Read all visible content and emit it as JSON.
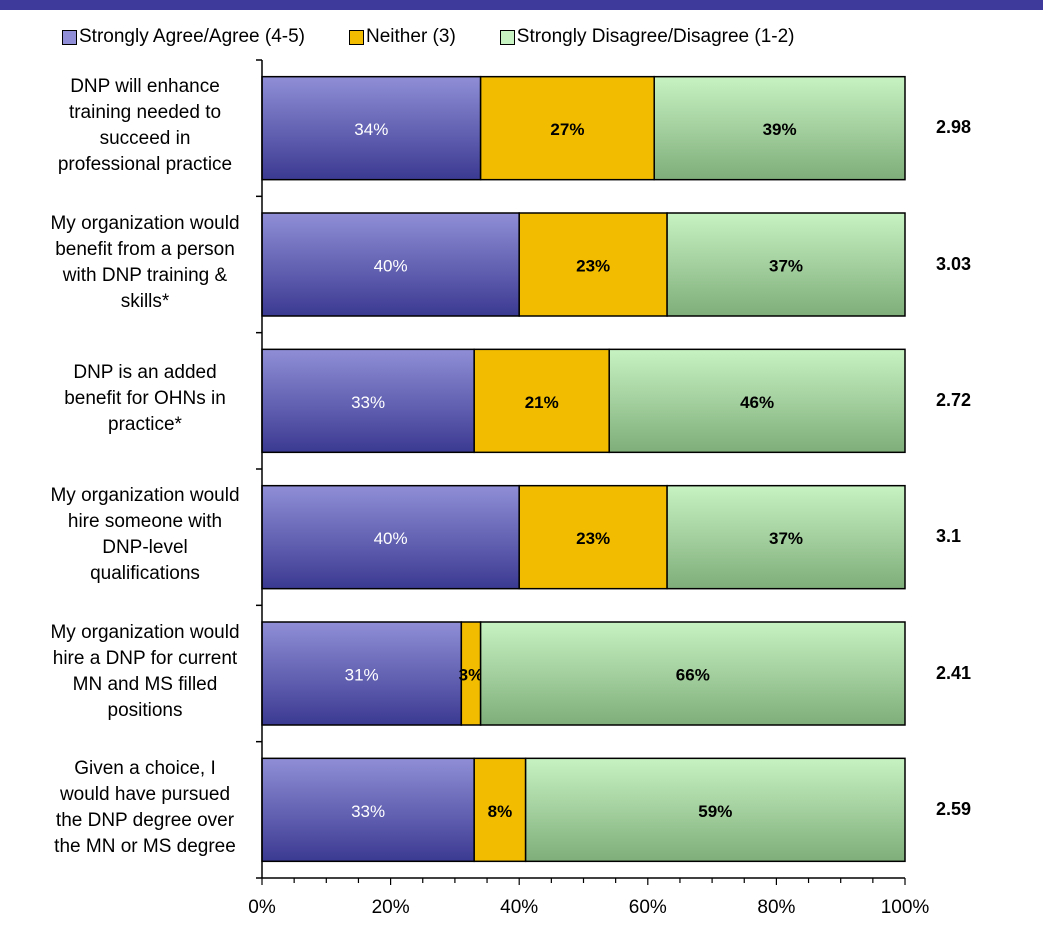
{
  "colors": {
    "top_band": "#3d3a9c",
    "agree": "#8f8ed6",
    "agree_dark": "#3b3a92",
    "neither": "#f2bd00",
    "disagree": "#c7f2c2",
    "disagree_dark": "#7fae7a"
  },
  "chart_data": {
    "type": "bar",
    "orientation": "horizontal",
    "stacked": true,
    "categories": [
      "DNP will enhance training needed to succeed in professional practice",
      "My organization would benefit from a person with DNP training & skills*",
      "DNP is an added benefit for OHNs in practice*",
      "My organization would hire someone with DNP-level qualifications",
      "My organization would hire a DNP for current MN and MS filled positions",
      "Given a choice, I would have pursued the DNP degree over the MN or MS degree"
    ],
    "category_lines": [
      [
        "DNP will enhance",
        "training needed to",
        "succeed in",
        "professional practice"
      ],
      [
        "My organization would",
        "benefit from a person",
        "with DNP training &",
        "skills*"
      ],
      [
        "DNP is an added",
        "benefit for OHNs in",
        "practice*"
      ],
      [
        "My organization would",
        "hire someone with",
        "DNP-level",
        "qualifications"
      ],
      [
        "My organization would",
        "hire a DNP for current",
        "MN and MS filled",
        "positions"
      ],
      [
        "Given a choice, I",
        "would have pursued",
        "the DNP degree over",
        "the MN or MS degree"
      ]
    ],
    "series": [
      {
        "name": "Strongly Agree/Agree (4-5)",
        "values": [
          34,
          40,
          33,
          40,
          31,
          33
        ],
        "labels": [
          "34%",
          "40%",
          "33%",
          "40%",
          "31%",
          "33%"
        ]
      },
      {
        "name": "Neither (3)",
        "values": [
          27,
          23,
          21,
          23,
          3,
          8
        ],
        "labels": [
          "27%",
          "23%",
          "21%",
          "23%",
          "3%",
          "8%"
        ]
      },
      {
        "name": "Strongly Disagree/Disagree (1-2)",
        "values": [
          39,
          37,
          46,
          37,
          66,
          59
        ],
        "labels": [
          "39%",
          "37%",
          "46%",
          "37%",
          "66%",
          "59%"
        ]
      }
    ],
    "mean_scores": [
      "2.98",
      "3.03",
      "2.72",
      "3.1",
      "2.41",
      "2.59"
    ],
    "xlim": [
      0,
      100
    ],
    "x_ticks": [
      "0%",
      "20%",
      "40%",
      "60%",
      "80%",
      "100%"
    ],
    "legend_position": "top",
    "grid": false
  }
}
